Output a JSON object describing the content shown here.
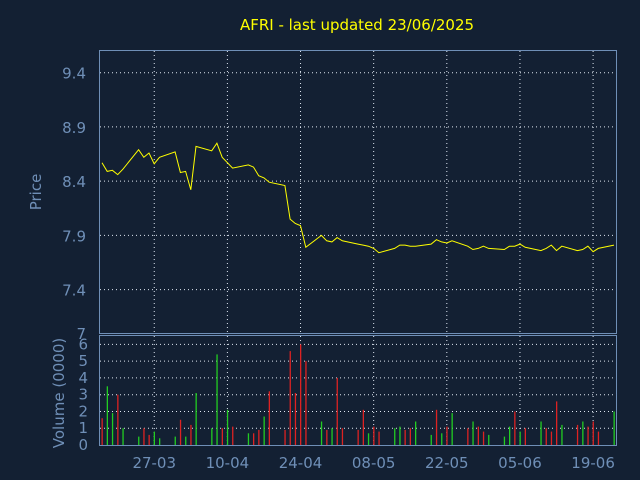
{
  "chart_data": [
    {
      "type": "line",
      "title": "AFRI - last updated 23/06/2025",
      "ylabel": "Price",
      "ylim": [
        7.0,
        9.6
      ],
      "yticks": [
        "9.4",
        "8.9",
        "8.4",
        "7.9",
        "7.4",
        "7"
      ],
      "x_dates": [
        "2025-03-17",
        "2025-03-18",
        "2025-03-19",
        "2025-03-20",
        "2025-03-21",
        "2025-03-24",
        "2025-03-25",
        "2025-03-26",
        "2025-03-27",
        "2025-03-28",
        "2025-03-31",
        "2025-04-01",
        "2025-04-02",
        "2025-04-03",
        "2025-04-04",
        "2025-04-07",
        "2025-04-08",
        "2025-04-09",
        "2025-04-10",
        "2025-04-11",
        "2025-04-14",
        "2025-04-15",
        "2025-04-16",
        "2025-04-17",
        "2025-04-18",
        "2025-04-21",
        "2025-04-22",
        "2025-04-23",
        "2025-04-24",
        "2025-04-25",
        "2025-04-28",
        "2025-04-29",
        "2025-04-30",
        "2025-05-01",
        "2025-05-02",
        "2025-05-05",
        "2025-05-06",
        "2025-05-07",
        "2025-05-08",
        "2025-05-09",
        "2025-05-12",
        "2025-05-13",
        "2025-05-14",
        "2025-05-15",
        "2025-05-16",
        "2025-05-19",
        "2025-05-20",
        "2025-05-21",
        "2025-05-22",
        "2025-05-23",
        "2025-05-26",
        "2025-05-27",
        "2025-05-28",
        "2025-05-29",
        "2025-05-30",
        "2025-06-02",
        "2025-06-03",
        "2025-06-04",
        "2025-06-05",
        "2025-06-06",
        "2025-06-09",
        "2025-06-10",
        "2025-06-11",
        "2025-06-12",
        "2025-06-13",
        "2025-06-16",
        "2025-06-17",
        "2025-06-18",
        "2025-06-19",
        "2025-06-20",
        "2025-06-23"
      ],
      "series": [
        {
          "color": "#ffff00",
          "values": [
            8.57,
            8.49,
            8.5,
            8.46,
            8.51,
            8.69,
            8.62,
            8.66,
            8.56,
            8.62,
            8.67,
            8.48,
            8.49,
            8.32,
            8.72,
            8.68,
            8.75,
            8.62,
            8.57,
            8.52,
            8.55,
            8.53,
            8.45,
            8.43,
            8.39,
            8.36,
            8.05,
            8.01,
            7.99,
            7.79,
            7.9,
            7.85,
            7.84,
            7.88,
            7.85,
            7.82,
            7.81,
            7.8,
            7.78,
            7.74,
            7.78,
            7.81,
            7.81,
            7.8,
            7.8,
            7.82,
            7.86,
            7.84,
            7.83,
            7.85,
            7.8,
            7.77,
            7.78,
            7.8,
            7.78,
            7.77,
            7.8,
            7.8,
            7.82,
            7.79,
            7.76,
            7.78,
            7.81,
            7.76,
            7.8,
            7.76,
            7.77,
            7.8,
            7.75,
            7.78,
            7.81
          ]
        }
      ]
    },
    {
      "type": "bar",
      "ylabel": "Volume (0000)",
      "ylim": [
        0,
        6.5
      ],
      "yticks": [
        "0",
        "1",
        "2",
        "3",
        "4",
        "5",
        "6"
      ],
      "xticks": [
        "27-03",
        "10-04",
        "24-04",
        "08-05",
        "22-05",
        "05-06",
        "19-06"
      ],
      "up_color": "#22cc22",
      "down_color": "#dd2222",
      "values": [
        1.6,
        3.5,
        1.9,
        3.0,
        1.0,
        0.5,
        1.0,
        0.6,
        0.8,
        0.4,
        0.5,
        1.5,
        0.5,
        1.2,
        3.1,
        1.0,
        5.4,
        1.0,
        2.1,
        1.1,
        0.7,
        0.7,
        0.9,
        1.7,
        3.2,
        0.9,
        5.6,
        3.1,
        6.0,
        5.0,
        1.4,
        0.9,
        1.0,
        4.0,
        1.0,
        0.9,
        2.1,
        0.7,
        1.1,
        0.8,
        1.0,
        1.1,
        0.9,
        1.0,
        1.4,
        0.6,
        2.1,
        0.7,
        1.1,
        1.9,
        1.0,
        1.4,
        1.1,
        0.8,
        0.6,
        0.5,
        1.1,
        2.0,
        0.8,
        1.0,
        1.4,
        1.0,
        0.8,
        2.6,
        1.2,
        1.2,
        1.4,
        1.1,
        1.4,
        0.8,
        2.0
      ],
      "directions": [
        "down",
        "up",
        "up",
        "down",
        "up",
        "up",
        "down",
        "down",
        "up",
        "up",
        "up",
        "down",
        "up",
        "down",
        "up",
        "up",
        "up",
        "down",
        "up",
        "down",
        "up",
        "down",
        "down",
        "up",
        "down",
        "down",
        "down",
        "down",
        "down",
        "down",
        "up",
        "down",
        "up",
        "down",
        "down",
        "down",
        "down",
        "up",
        "down",
        "down",
        "up",
        "up",
        "down",
        "down",
        "up",
        "up",
        "down",
        "up",
        "down",
        "up",
        "down",
        "up",
        "down",
        "down",
        "up",
        "up",
        "up",
        "down",
        "up",
        "down",
        "up",
        "down",
        "down",
        "down",
        "up",
        "down",
        "up",
        "down",
        "down",
        "down",
        "up"
      ]
    }
  ]
}
